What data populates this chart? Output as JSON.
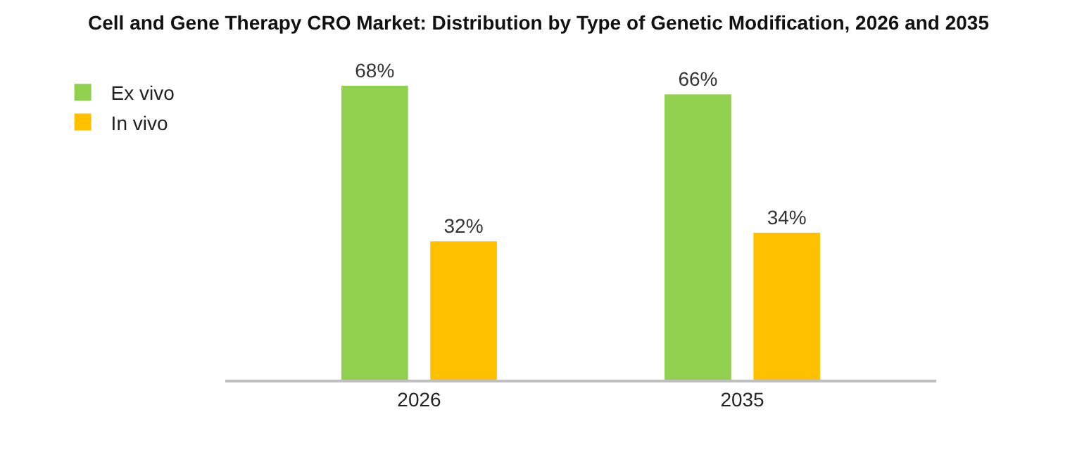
{
  "chart_data": {
    "type": "bar",
    "title": "Cell and Gene Therapy CRO Market: Distribution by Type of Genetic Modification, 2026 and 2035",
    "categories": [
      "2026",
      "2035"
    ],
    "series": [
      {
        "name": "Ex vivo",
        "color": "#92d050",
        "values": [
          68,
          66
        ],
        "value_labels": [
          "68%",
          "66%"
        ]
      },
      {
        "name": "In vivo",
        "color": "#ffc000",
        "values": [
          32,
          34
        ],
        "value_labels": [
          "32%",
          "34%"
        ]
      }
    ],
    "legend": "top left",
    "grid": false
  }
}
